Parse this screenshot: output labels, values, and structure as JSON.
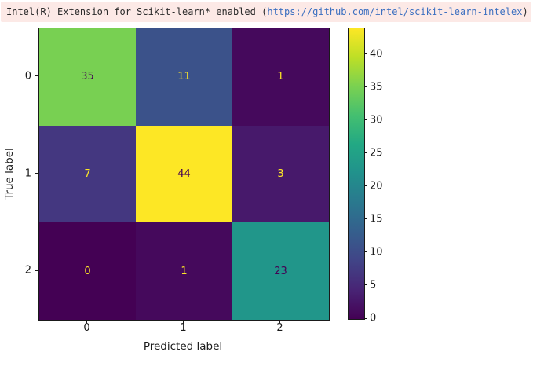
{
  "banner": {
    "text_prefix": "Intel(R) Extension for Scikit-learn* enabled (",
    "link_text": "https://github.com/intel/scikit-learn-intelex",
    "text_suffix": ")",
    "background": "#fce9e6",
    "text_color": "#2b2b2b",
    "link_color": "#3b6fc0"
  },
  "chart_data": {
    "type": "heatmap",
    "title": "",
    "xlabel": "Predicted label",
    "ylabel": "True label",
    "x_tick_labels": [
      "0",
      "1",
      "2"
    ],
    "y_tick_labels": [
      "0",
      "1",
      "2"
    ],
    "matrix": [
      [
        35,
        11,
        1
      ],
      [
        7,
        44,
        3
      ],
      [
        0,
        1,
        23
      ]
    ],
    "vmin": 0,
    "vmax": 44,
    "colormap": "viridis",
    "colorbar_ticks": [
      0,
      5,
      10,
      15,
      20,
      25,
      30,
      35,
      40
    ],
    "colorbar_position": "right",
    "cell_text_dark": "#440154",
    "cell_text_light": "#fde725",
    "grid": false,
    "legend": false
  }
}
